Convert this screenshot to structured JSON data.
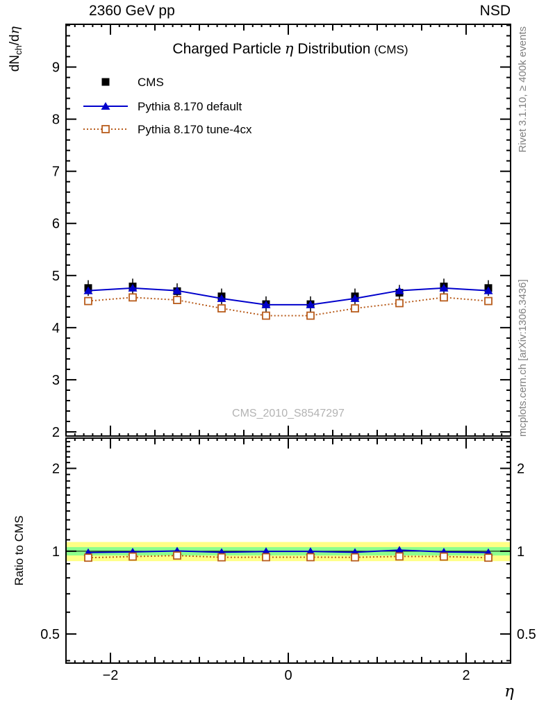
{
  "header": {
    "left": "2360 GeV pp",
    "right": "NSD"
  },
  "title": {
    "part1": "Charged Particle",
    "eta": "η",
    "part2": "Distribution",
    "suffix": "(CMS)"
  },
  "watermark": "CMS_2010_S8547297",
  "credits": {
    "rivet": "Rivet 3.1.10, ≥ 400k events",
    "mcplots": "mcplots.cern.ch [arXiv:1306.3436]"
  },
  "ylabel_main": {
    "pre": "dN",
    "sub": "ch",
    "post": "/d",
    "eta": "η"
  },
  "ylabel_ratio": "Ratio to CMS",
  "xlabel": "η",
  "chart_data": {
    "type": "line",
    "title": "Charged Particle η Distribution (CMS)",
    "x": [
      -2.25,
      -1.75,
      -1.25,
      -0.75,
      -0.25,
      0.25,
      0.75,
      1.25,
      1.75,
      2.25
    ],
    "xlim": [
      -2.5,
      2.5
    ],
    "xticks_labeled": [
      -2,
      0,
      2
    ],
    "main_panel": {
      "ylabel": "dN_ch/dη",
      "scale": "linear",
      "ylim": [
        1.92,
        9.82
      ],
      "yticks": [
        2,
        3,
        4,
        5,
        6,
        7,
        8,
        9
      ]
    },
    "ratio_panel": {
      "ylabel": "Ratio to CMS",
      "scale": "log",
      "ylim": [
        0.392,
        2.576
      ],
      "yticks": [
        0.5,
        1,
        2
      ],
      "reference": 1,
      "bands": [
        {
          "label": "outer uncertainty band",
          "lo": 0.92,
          "hi": 1.08,
          "color": "#ffff85"
        },
        {
          "label": "inner uncertainty band",
          "lo": 0.965,
          "hi": 1.035,
          "color": "#8dff8d"
        }
      ]
    },
    "series": [
      {
        "name": "CMS",
        "color": "#000000",
        "marker": "filled-square",
        "line": "none",
        "error": 0.15,
        "values": [
          4.76,
          4.79,
          4.7,
          4.6,
          4.45,
          4.45,
          4.6,
          4.67,
          4.79,
          4.76
        ],
        "ratio": null
      },
      {
        "name": "Pythia 8.170 default",
        "color": "#0000cc",
        "marker": "filled-triangle",
        "line": "solid",
        "values": [
          4.71,
          4.76,
          4.71,
          4.56,
          4.44,
          4.44,
          4.56,
          4.71,
          4.76,
          4.71
        ],
        "ratio": [
          0.989,
          0.994,
          1.002,
          0.991,
          0.998,
          0.998,
          0.991,
          1.009,
          0.994,
          0.989
        ]
      },
      {
        "name": "Pythia 8.170 tune-4cx",
        "color": "#b85c1c",
        "marker": "open-square",
        "line": "dotted",
        "values": [
          4.51,
          4.58,
          4.53,
          4.37,
          4.23,
          4.23,
          4.37,
          4.47,
          4.58,
          4.51
        ],
        "ratio": [
          0.947,
          0.956,
          0.964,
          0.95,
          0.951,
          0.951,
          0.95,
          0.957,
          0.956,
          0.947
        ]
      }
    ]
  }
}
